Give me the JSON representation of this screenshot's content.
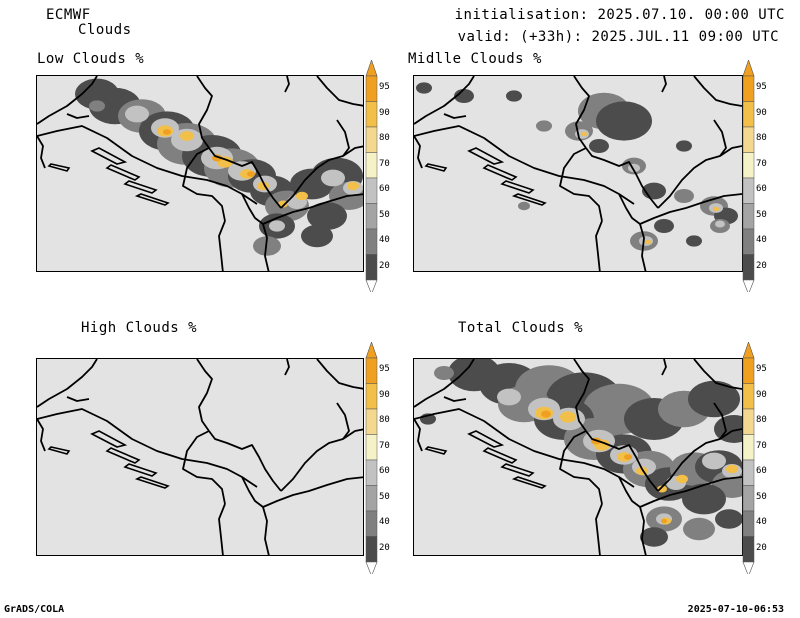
{
  "header": {
    "model": "ECMWF",
    "product": "Clouds",
    "initialisation": "initialisation: 2025.07.10. 00:00 UTC",
    "valid": "valid: (+33h): 2025.JUL.11 09:00 UTC"
  },
  "panels": {
    "low": {
      "title": "Low Clouds %"
    },
    "middle": {
      "title": "Midlle Clouds %"
    },
    "high": {
      "title": "High Clouds %"
    },
    "total": {
      "title": "Total Clouds %"
    }
  },
  "colorbar": {
    "levels": [
      "95",
      "90",
      "80",
      "70",
      "60",
      "50",
      "40",
      "20"
    ],
    "colors": {
      "c95": "#efa020",
      "c90": "#f2bf48",
      "c80": "#f4d890",
      "c70": "#f6f2c8",
      "c60": "#c2c2c2",
      "c50": "#a4a4a4",
      "c40": "#808080",
      "c20": "#4c4c4c",
      "background": "#e3e3e3"
    }
  },
  "footer": {
    "software": "GrADS/COLA",
    "timestamp": "2025-07-10-06:53"
  }
}
